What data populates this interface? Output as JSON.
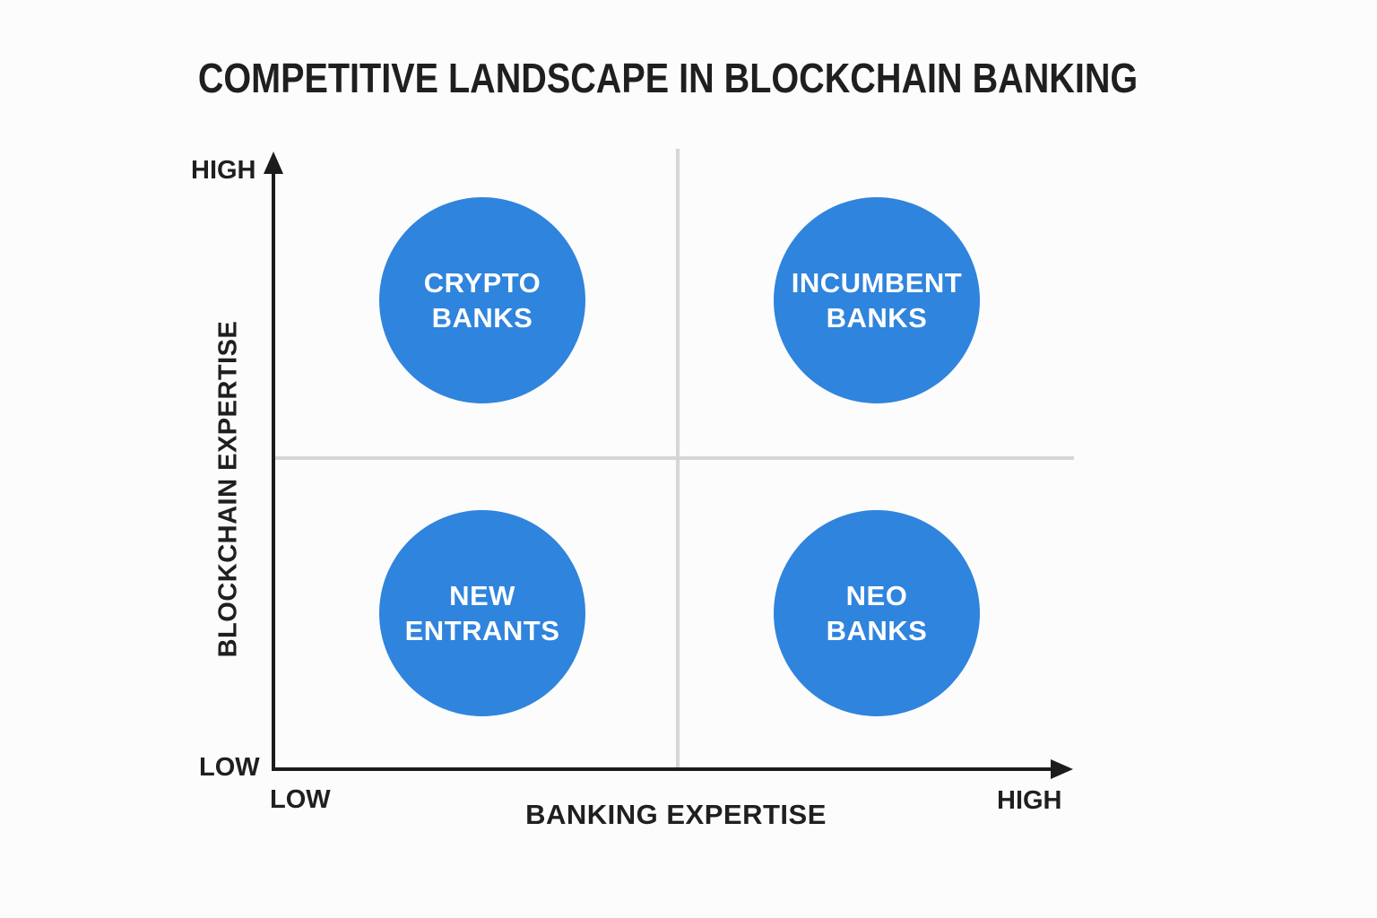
{
  "title": "COMPETITIVE LANDSCAPE IN BLOCKCHAIN BANKING",
  "colors": {
    "background": "#fcfcfc",
    "axis": "#1c1c1c",
    "divider": "#d6d6d6",
    "bubble": "#2f84dd",
    "bubble_text": "#ffffff",
    "text": "#1f1f1f"
  },
  "y_axis": {
    "title": "BLOCKCHAIN EXPERTISE",
    "high_label": "HIGH",
    "low_label": "LOW"
  },
  "x_axis": {
    "title": "BANKING EXPERTISE",
    "high_label": "HIGH",
    "low_label": "LOW"
  },
  "quadrants": [
    {
      "position": "top-left",
      "line1": "CRYPTO",
      "line2": "BANKS",
      "blockchain_expertise": "high",
      "banking_expertise": "low"
    },
    {
      "position": "top-right",
      "line1": "INCUMBENT",
      "line2": "BANKS",
      "blockchain_expertise": "high",
      "banking_expertise": "high"
    },
    {
      "position": "bottom-left",
      "line1": "NEW",
      "line2": "ENTRANTS",
      "blockchain_expertise": "low",
      "banking_expertise": "low"
    },
    {
      "position": "bottom-right",
      "line1": "NEO",
      "line2": "BANKS",
      "blockchain_expertise": "low",
      "banking_expertise": "high"
    }
  ],
  "chart_data": {
    "type": "scatter",
    "title": "COMPETITIVE LANDSCAPE IN BLOCKCHAIN BANKING",
    "xlabel": "BANKING EXPERTISE",
    "ylabel": "BLOCKCHAIN EXPERTISE",
    "x_range": [
      "LOW",
      "HIGH"
    ],
    "y_range": [
      "LOW",
      "HIGH"
    ],
    "grid": "2x2 quadrant dividers",
    "points": [
      {
        "label": "CRYPTO BANKS",
        "x": "low",
        "y": "high"
      },
      {
        "label": "INCUMBENT BANKS",
        "x": "high",
        "y": "high"
      },
      {
        "label": "NEW ENTRANTS",
        "x": "low",
        "y": "low"
      },
      {
        "label": "NEO BANKS",
        "x": "high",
        "y": "low"
      }
    ]
  }
}
